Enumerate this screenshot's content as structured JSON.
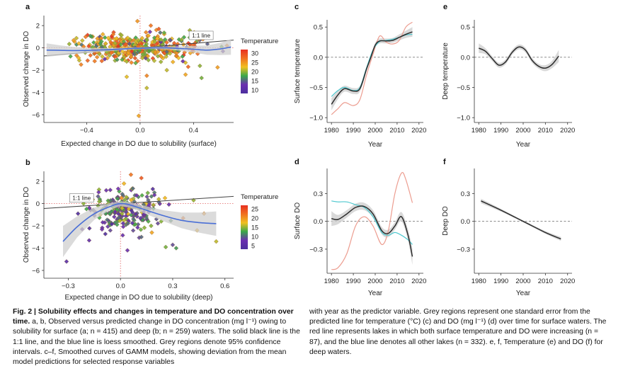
{
  "caption": {
    "title": "Fig. 2 | Solubility effects and changes in temperature and DO concentration over time.",
    "left_body": "a, b, Observed versus predicted change in DO concentration (mg l⁻¹) owing to solubility for surface (a; n = 415) and deep (b; n = 259) waters. The solid black line is the 1:1 line, and the blue line is loess smoothed. Grey regions denote 95% confidence intervals. c–f, Smoothed curves of GAMM models, showing deviation from the mean model predictions for selected response variables",
    "right_body": "with year as the predictor variable. Grey regions represent one standard error from the predicted line for temperature (°C) (c) and DO (mg l⁻¹) (d) over time for surface waters. The red line represents lakes in which both surface temperature and DO were increasing (n = 87), and the blue line denotes all other lakes (n = 332). e, f, Temperature (e) and DO (f) for deep waters."
  },
  "colors": {
    "loess": "#4a6fd6",
    "ci": "#cfcfcf",
    "red_line": "#ec9d90",
    "cyan_line": "#4ec8cf",
    "ref_line": "#555555",
    "temp_gradient": [
      "#4b2f9e",
      "#6a2fb0",
      "#3aa84a",
      "#f0c020",
      "#f07020",
      "#e83020"
    ]
  },
  "chart_data": [
    {
      "panel": "a",
      "type": "scatter",
      "xlabel": "Expected change in DO due to solubility (surface)",
      "ylabel": "Observed change in DO",
      "xlim": [
        -0.72,
        0.7
      ],
      "ylim": [
        -6.7,
        2.9
      ],
      "xticks": [
        -0.4,
        0.0,
        0.4
      ],
      "xtick_labels": [
        "−0.4",
        "0.0",
        "0.4"
      ],
      "yticks": [
        2,
        0,
        -2,
        -4,
        -6
      ],
      "ytick_labels": [
        "2",
        "0",
        "−2",
        "−4",
        "−6"
      ],
      "reference_label": "1:1 line",
      "legend": {
        "title": "Temperature",
        "ticks": [
          30,
          25,
          20,
          15,
          10
        ],
        "range": [
          8,
          32
        ]
      },
      "loess": {
        "x": [
          -0.7,
          -0.6,
          -0.5,
          -0.4,
          -0.3,
          -0.2,
          -0.1,
          0,
          0.1,
          0.2,
          0.3,
          0.4,
          0.5,
          0.6,
          0.68
        ],
        "y": [
          -0.2,
          -0.22,
          -0.24,
          -0.23,
          -0.19,
          -0.14,
          -0.08,
          -0.03,
          0.0,
          0.0,
          -0.06,
          -0.12,
          -0.2,
          -0.1,
          0.08
        ],
        "ci": [
          0.6,
          0.45,
          0.33,
          0.24,
          0.17,
          0.13,
          0.1,
          0.09,
          0.1,
          0.13,
          0.2,
          0.3,
          0.42,
          0.55,
          0.7
        ]
      },
      "cloud": {
        "n": 415,
        "x_center": -0.02,
        "x_spread": 0.21,
        "y_center": 0.02,
        "y_spread": 0.62,
        "temp_center": 23,
        "temp_spread": 5,
        "outliers": [
          [
            -0.1,
            -2.6,
            22
          ],
          [
            0.05,
            -2.5,
            26
          ],
          [
            0.2,
            -2.0,
            21
          ],
          [
            0.34,
            -2.4,
            24
          ],
          [
            0.46,
            -2.7,
            19
          ],
          [
            0.36,
            -1.7,
            28
          ],
          [
            0.32,
            -1.2,
            12
          ],
          [
            -0.46,
            -0.9,
            23
          ],
          [
            -0.53,
            0.35,
            20
          ],
          [
            0.61,
            0.1,
            18
          ],
          [
            0.65,
            0.2,
            26
          ],
          [
            0.62,
            -0.3,
            11
          ],
          [
            0.05,
            -3.6,
            21
          ],
          [
            -0.01,
            -6.1,
            24
          ],
          [
            0.44,
            0.8,
            22
          ],
          [
            0.08,
            2.0,
            27
          ],
          [
            0.14,
            1.7,
            29
          ],
          [
            -0.02,
            2.4,
            25
          ]
        ]
      }
    },
    {
      "panel": "b",
      "type": "scatter",
      "xlabel": "Expected change in DO due to solubility (deep)",
      "ylabel": "Observed change in DO",
      "xlim": [
        -0.44,
        0.65
      ],
      "ylim": [
        -6.7,
        2.9
      ],
      "xticks": [
        -0.3,
        0.0,
        0.3,
        0.6
      ],
      "xtick_labels": [
        "−0.3",
        "0.0",
        "0.3",
        "0.6"
      ],
      "yticks": [
        2,
        0,
        -2,
        -4,
        -6
      ],
      "ytick_labels": [
        "2",
        "0",
        "−2",
        "−4",
        "−6"
      ],
      "reference_label": "1:1 line",
      "legend": {
        "title": "Temperature",
        "ticks": [
          25,
          20,
          15,
          10,
          5
        ],
        "range": [
          3,
          27
        ]
      },
      "loess": {
        "x": [
          -0.33,
          -0.25,
          -0.15,
          -0.05,
          0.0,
          0.05,
          0.15,
          0.25,
          0.35,
          0.45,
          0.55
        ],
        "y": [
          -3.4,
          -2.1,
          -0.9,
          -0.2,
          0.0,
          -0.1,
          -0.6,
          -1.1,
          -1.5,
          -1.7,
          -1.8
        ],
        "ci": [
          1.4,
          0.95,
          0.55,
          0.28,
          0.22,
          0.25,
          0.35,
          0.5,
          0.7,
          0.9,
          1.1
        ]
      },
      "cloud": {
        "n": 259,
        "x_center": 0.03,
        "x_spread": 0.1,
        "y_center": -0.5,
        "y_spread": 0.9,
        "temp_center": 10,
        "temp_spread": 4,
        "outliers": [
          [
            -0.31,
            -5.2,
            5
          ],
          [
            -0.22,
            -2.3,
            8
          ],
          [
            -0.18,
            -3.3,
            6
          ],
          [
            0.3,
            -3.7,
            9
          ],
          [
            0.32,
            -4.0,
            12
          ],
          [
            0.55,
            -3.4,
            16
          ],
          [
            0.44,
            -2.4,
            18
          ],
          [
            0.42,
            0.3,
            15
          ],
          [
            0.48,
            -0.9,
            20
          ],
          [
            0.26,
            -3.9,
            14
          ],
          [
            0.16,
            -1.6,
            13
          ],
          [
            0.12,
            -3.0,
            10
          ],
          [
            0.06,
            2.6,
            22
          ],
          [
            0.12,
            2.3,
            24
          ],
          [
            0.02,
            1.8,
            18
          ],
          [
            0.22,
            0.4,
            16
          ],
          [
            0.04,
            -4.2,
            7
          ],
          [
            0.18,
            -2.6,
            19
          ],
          [
            0.36,
            -1.3,
            22
          ]
        ]
      }
    },
    {
      "panel": "c",
      "type": "line",
      "xlabel": "Year",
      "ylabel": "Surface temperature",
      "xlim": [
        1978,
        2022
      ],
      "ylim": [
        -1.08,
        0.62
      ],
      "xticks": [
        1980,
        1990,
        2000,
        2010,
        2020
      ],
      "xtick_labels": [
        "1980",
        "1990",
        "2000",
        "2010",
        "2020"
      ],
      "yticks": [
        0.5,
        0.0,
        -0.5,
        -1.0
      ],
      "ytick_labels": [
        "0.5",
        "0.0",
        "−0.5",
        "−1.0"
      ],
      "series": [
        {
          "name": "all",
          "role": "main",
          "x": [
            1980,
            1983,
            1986,
            1990,
            1993,
            1996,
            1998,
            2000,
            2002,
            2005,
            2008,
            2011,
            2014,
            2017
          ],
          "y": [
            -0.78,
            -0.62,
            -0.52,
            -0.56,
            -0.52,
            -0.2,
            0.0,
            0.2,
            0.27,
            0.27,
            0.28,
            0.33,
            0.38,
            0.42
          ],
          "se": [
            0.1,
            0.07,
            0.05,
            0.05,
            0.05,
            0.04,
            0.04,
            0.04,
            0.04,
            0.04,
            0.04,
            0.05,
            0.06,
            0.08
          ]
        },
        {
          "name": "increasing temp & DO",
          "role": "red",
          "x": [
            1980,
            1983,
            1986,
            1990,
            1993,
            1996,
            1999,
            2002,
            2005,
            2008,
            2011,
            2014,
            2017
          ],
          "y": [
            -0.95,
            -0.85,
            -0.75,
            -0.8,
            -0.7,
            -0.3,
            0.05,
            0.35,
            0.25,
            0.22,
            0.28,
            0.5,
            0.58
          ]
        },
        {
          "name": "all other lakes",
          "role": "cyan",
          "x": [
            1980,
            1983,
            1986,
            1990,
            1993,
            1996,
            1999,
            2002,
            2005,
            2008,
            2011,
            2014,
            2017
          ],
          "y": [
            -0.65,
            -0.55,
            -0.5,
            -0.55,
            -0.5,
            -0.18,
            0.12,
            0.26,
            0.28,
            0.3,
            0.33,
            0.37,
            0.38
          ]
        }
      ]
    },
    {
      "panel": "d",
      "type": "line",
      "xlabel": "Year",
      "ylabel": "Surface DO",
      "xlim": [
        1978,
        2022
      ],
      "ylim": [
        -0.56,
        0.57
      ],
      "xticks": [
        1980,
        1990,
        2000,
        2010,
        2020
      ],
      "xtick_labels": [
        "1980",
        "1990",
        "2000",
        "2010",
        "2020"
      ],
      "yticks": [
        0.3,
        0.0,
        -0.3
      ],
      "ytick_labels": [
        "0.3",
        "0.0",
        "−0.3"
      ],
      "series": [
        {
          "name": "all",
          "role": "main",
          "x": [
            1980,
            1983,
            1987,
            1991,
            1995,
            1999,
            2003,
            2006,
            2009,
            2012,
            2015,
            2017
          ],
          "y": [
            0.03,
            0.02,
            0.08,
            0.15,
            0.16,
            0.08,
            -0.1,
            -0.13,
            -0.05,
            0.05,
            -0.15,
            -0.38
          ],
          "se": [
            0.08,
            0.05,
            0.04,
            0.04,
            0.04,
            0.04,
            0.04,
            0.04,
            0.04,
            0.05,
            0.06,
            0.09
          ]
        },
        {
          "name": "increasing temp & DO",
          "role": "red",
          "x": [
            1980,
            1983,
            1987,
            1991,
            1995,
            1999,
            2003,
            2006,
            2009,
            2012,
            2014,
            2017
          ],
          "y": [
            -0.52,
            -0.5,
            -0.35,
            -0.05,
            0.05,
            -0.05,
            -0.25,
            -0.1,
            0.3,
            0.52,
            0.45,
            0.2
          ]
        },
        {
          "name": "all other lakes",
          "role": "cyan",
          "x": [
            1980,
            1983,
            1987,
            1991,
            1995,
            1999,
            2003,
            2006,
            2009,
            2012,
            2015,
            2017
          ],
          "y": [
            0.22,
            0.21,
            0.21,
            0.18,
            0.15,
            0.05,
            -0.12,
            -0.15,
            -0.12,
            -0.15,
            -0.2,
            -0.25
          ]
        }
      ]
    },
    {
      "panel": "e",
      "type": "line",
      "xlabel": "Year",
      "ylabel": "Deep temperature",
      "xlim": [
        1978,
        2022
      ],
      "ylim": [
        -1.08,
        0.62
      ],
      "xticks": [
        1980,
        1990,
        2000,
        2010,
        2020
      ],
      "xtick_labels": [
        "1980",
        "1990",
        "2000",
        "2010",
        "2020"
      ],
      "yticks": [
        0.5,
        0.0,
        -0.5,
        -1.0
      ],
      "ytick_labels": [
        "0.5",
        "0.0",
        "−0.5",
        "−1.0"
      ],
      "series": [
        {
          "name": "all",
          "role": "main",
          "x": [
            1980,
            1983,
            1986,
            1989,
            1992,
            1995,
            1998,
            2001,
            2004,
            2007,
            2010,
            2013,
            2016
          ],
          "y": [
            0.15,
            0.1,
            -0.02,
            -0.13,
            -0.08,
            0.08,
            0.17,
            0.12,
            -0.05,
            -0.15,
            -0.18,
            -0.12,
            0.02
          ],
          "se": [
            0.08,
            0.05,
            0.04,
            0.04,
            0.04,
            0.04,
            0.04,
            0.04,
            0.04,
            0.04,
            0.05,
            0.06,
            0.1
          ]
        }
      ]
    },
    {
      "panel": "f",
      "type": "line",
      "xlabel": "Year",
      "ylabel": "Deep DO",
      "xlim": [
        1978,
        2022
      ],
      "ylim": [
        -0.56,
        0.57
      ],
      "xticks": [
        1980,
        1990,
        2000,
        2010,
        2020
      ],
      "xtick_labels": [
        "1980",
        "1990",
        "2000",
        "2010",
        "2020"
      ],
      "yticks": [
        0.3,
        0.0,
        -0.3
      ],
      "ytick_labels": [
        "0.3",
        "0.0",
        "−0.3"
      ],
      "series": [
        {
          "name": "all",
          "role": "main",
          "x": [
            1981,
            1990,
            2000,
            2010,
            2017
          ],
          "y": [
            0.22,
            0.12,
            0.0,
            -0.12,
            -0.19
          ],
          "se": [
            0.025,
            0.015,
            0.01,
            0.015,
            0.022
          ]
        }
      ]
    }
  ]
}
